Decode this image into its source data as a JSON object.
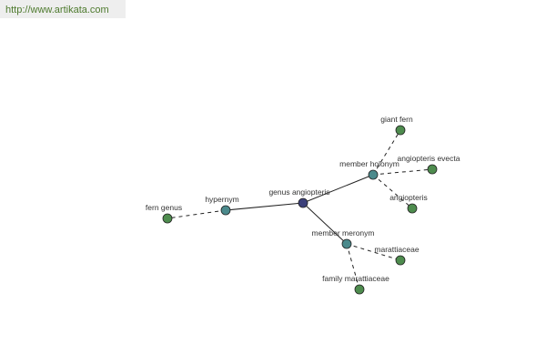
{
  "header": {
    "url": "http://www.artikata.com"
  },
  "nodes": [
    {
      "label": "genus angiopteris"
    },
    {
      "label": "hypernym"
    },
    {
      "label": "fern genus"
    },
    {
      "label": "member holonym"
    },
    {
      "label": "giant fern"
    },
    {
      "label": "angiopteris evecta"
    },
    {
      "label": "angiopteris"
    },
    {
      "label": "member meronym"
    },
    {
      "label": "marattiaceae"
    },
    {
      "label": "family marattiaceae"
    }
  ]
}
